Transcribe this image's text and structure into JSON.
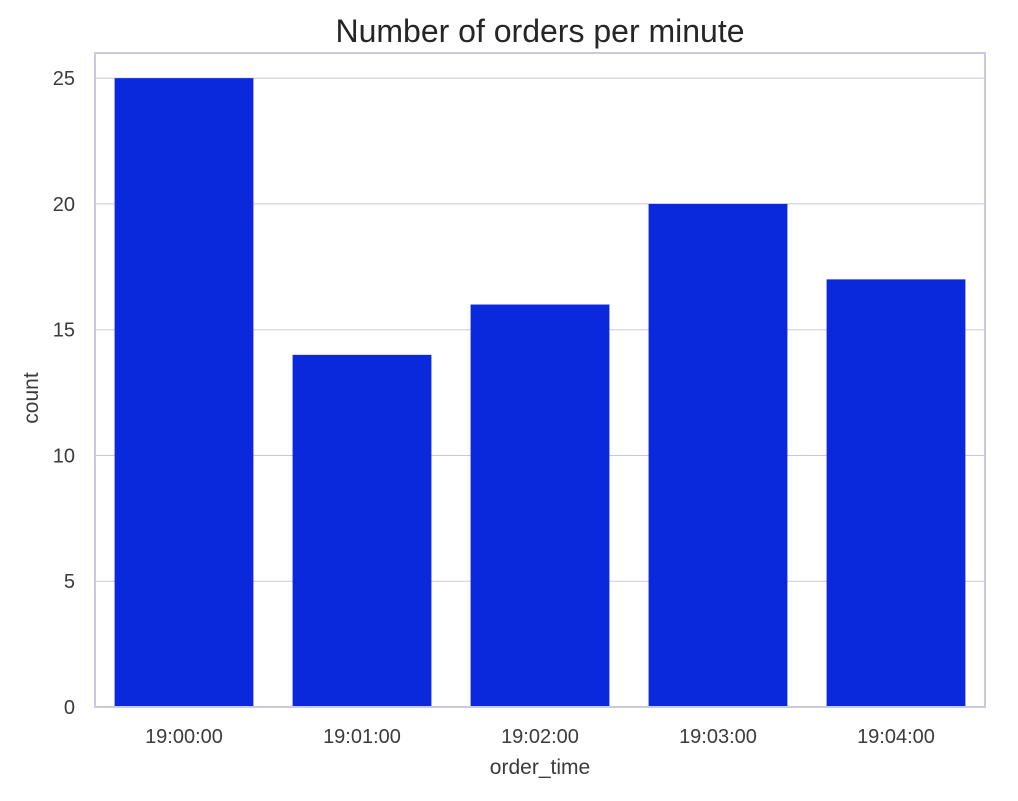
{
  "chart_data": {
    "type": "bar",
    "title": "Number of orders per minute",
    "xlabel": "order_time",
    "ylabel": "count",
    "categories": [
      "19:00:00",
      "19:01:00",
      "19:02:00",
      "19:03:00",
      "19:04:00"
    ],
    "values": [
      25,
      14,
      16,
      20,
      17
    ],
    "ylim": [
      0,
      26
    ],
    "yticks": [
      0,
      5,
      10,
      15,
      20,
      25
    ],
    "grid": true,
    "colors": {
      "bar": "#0a28dc",
      "grid": "#c8c8dc",
      "frame": "#c9c9e0",
      "text": "#3b3b3b"
    }
  }
}
